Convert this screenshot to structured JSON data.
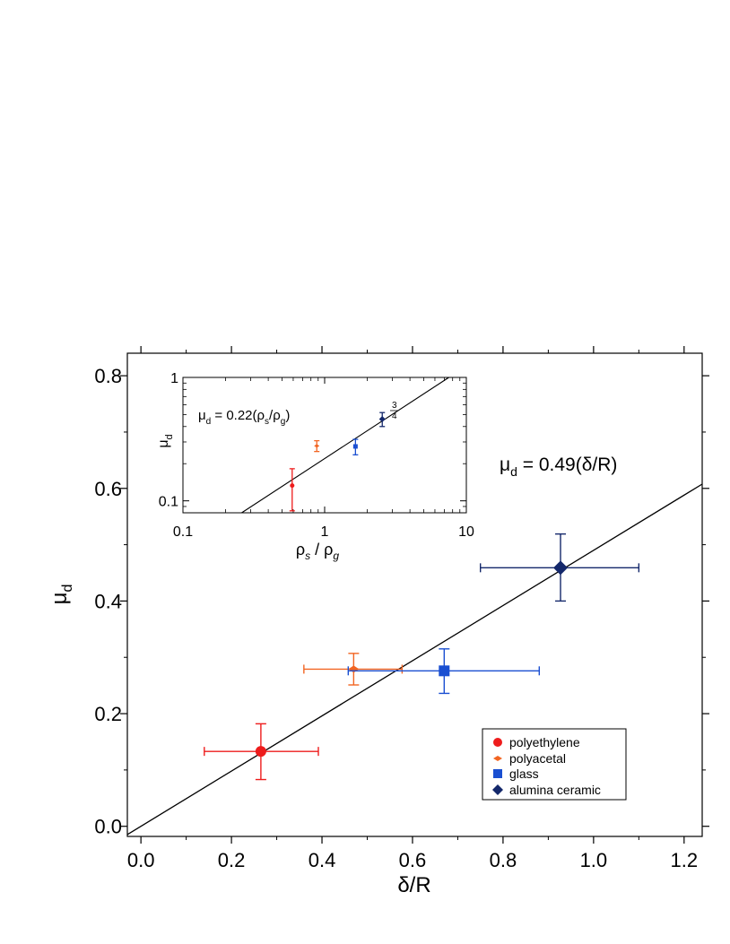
{
  "chart_data": [
    {
      "type": "scatter",
      "xlabel": "δ/R",
      "ylabel": "μ_d",
      "xlim": [
        -0.03,
        1.24
      ],
      "ylim": [
        -0.018,
        0.84
      ],
      "xticks": [
        0.0,
        0.2,
        0.4,
        0.6,
        0.8,
        1.0,
        1.2
      ],
      "xtick_labels": [
        "0.0",
        "0.2",
        "0.4",
        "0.6",
        "0.8",
        "1.0",
        "1.2"
      ],
      "yticks": [
        0.0,
        0.2,
        0.4,
        0.6,
        0.8
      ],
      "ytick_labels": [
        "0.0",
        "0.2",
        "0.4",
        "0.6",
        "0.8"
      ],
      "grid": false,
      "legend_position": "bottom-right",
      "series": [
        {
          "name": "polyethylene",
          "marker": "circle",
          "color": "#ee1c1c",
          "x": 0.265,
          "y": 0.133,
          "xerr": [
            0.14,
            0.392
          ],
          "yerr": [
            0.083,
            0.182
          ]
        },
        {
          "name": "polyacetal",
          "marker": "diamond-small",
          "color": "#f26522",
          "x": 0.47,
          "y": 0.279,
          "xerr": [
            0.36,
            0.577
          ],
          "yerr": [
            0.251,
            0.307
          ]
        },
        {
          "name": "glass",
          "marker": "square",
          "color": "#1a4fd1",
          "x": 0.67,
          "y": 0.276,
          "xerr": [
            0.458,
            0.88
          ],
          "yerr": [
            0.236,
            0.315
          ]
        },
        {
          "name": "alumina ceramic",
          "marker": "diamond",
          "color": "#14286b",
          "x": 0.927,
          "y": 0.459,
          "xerr": [
            0.75,
            1.1
          ],
          "yerr": [
            0.4,
            0.519
          ]
        }
      ],
      "fit": {
        "slope": 0.49,
        "label": "μ_d = 0.49(δ/R)"
      }
    },
    {
      "type": "scatter",
      "inset": true,
      "xlabel": "ρ_s / ρ_g",
      "ylabel": "μ_d",
      "xscale": "log",
      "yscale": "log",
      "xlim": [
        0.1,
        10
      ],
      "ylim": [
        0.08,
        1
      ],
      "xtick_labels": [
        "0.1",
        "1",
        "10"
      ],
      "ytick_labels": [
        "0.1",
        "1"
      ],
      "series": [
        {
          "name": "polyethylene",
          "x": 0.59,
          "y": 0.133,
          "yerr": [
            0.083,
            0.182
          ]
        },
        {
          "name": "polyacetal",
          "x": 0.88,
          "y": 0.279,
          "yerr": [
            0.251,
            0.307
          ]
        },
        {
          "name": "glass",
          "x": 1.65,
          "y": 0.276,
          "yerr": [
            0.236,
            0.315
          ]
        },
        {
          "name": "alumina ceramic",
          "x": 2.55,
          "y": 0.459,
          "yerr": [
            0.4,
            0.519
          ]
        }
      ],
      "fit": {
        "coefficient": 0.22,
        "exponent": 0.75,
        "label_main": "μ_d  =  0.22(ρ_s/ρ_g)",
        "exponent_num": "3",
        "exponent_den": "4"
      }
    }
  ]
}
